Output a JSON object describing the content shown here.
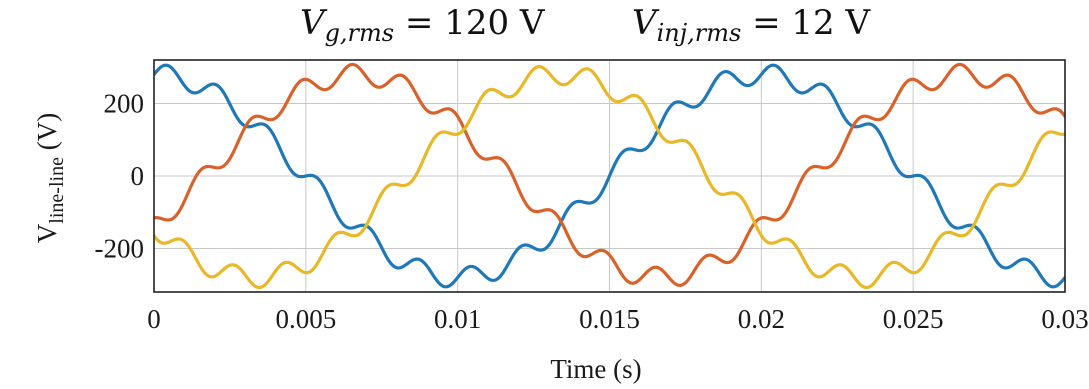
{
  "chart_data": {
    "type": "line",
    "title_left": "V_{g,rms} = 120 V",
    "title_left_parts": {
      "main": "V",
      "sub": "g,rms",
      "rest": " = 120 V"
    },
    "title_right": "V_{inj,rms} = 12 V",
    "title_right_parts": {
      "main": "V",
      "sub": "inj,rms",
      "rest": " = 12 V"
    },
    "xlabel": "Time (s)",
    "ylabel": "V_line-line (V)",
    "ylabel_parts": {
      "main": "V",
      "sub": "line-line",
      "unit": " (V)"
    },
    "xlim": [
      0,
      0.03
    ],
    "ylim": [
      -320,
      320
    ],
    "x_ticks": [
      0,
      0.005,
      0.01,
      0.015,
      0.02,
      0.025,
      0.03
    ],
    "x_tick_labels": [
      "0",
      "0.005",
      "0.01",
      "0.015",
      "0.02",
      "0.025",
      "0.03"
    ],
    "y_ticks": [
      -200,
      0,
      200
    ],
    "y_tick_labels": [
      "-200",
      "0",
      "200"
    ],
    "grid": true,
    "series": [
      {
        "color": "#1f78b8",
        "amplitude": 280,
        "frequency_hz": 50,
        "phase_deg": 90,
        "ripple_amplitude": 28,
        "ripple_frequency_hz": 600,
        "ripple_phase_deg": 0
      },
      {
        "color": "#d9622b",
        "amplitude": 280,
        "frequency_hz": 50,
        "phase_deg": -30,
        "ripple_amplitude": 28,
        "ripple_frequency_hz": 600,
        "ripple_phase_deg": 120
      },
      {
        "color": "#e8b828",
        "amplitude": 280,
        "frequency_hz": 50,
        "phase_deg": 210,
        "ripple_amplitude": 28,
        "ripple_frequency_hz": 600,
        "ripple_phase_deg": 240
      }
    ]
  }
}
